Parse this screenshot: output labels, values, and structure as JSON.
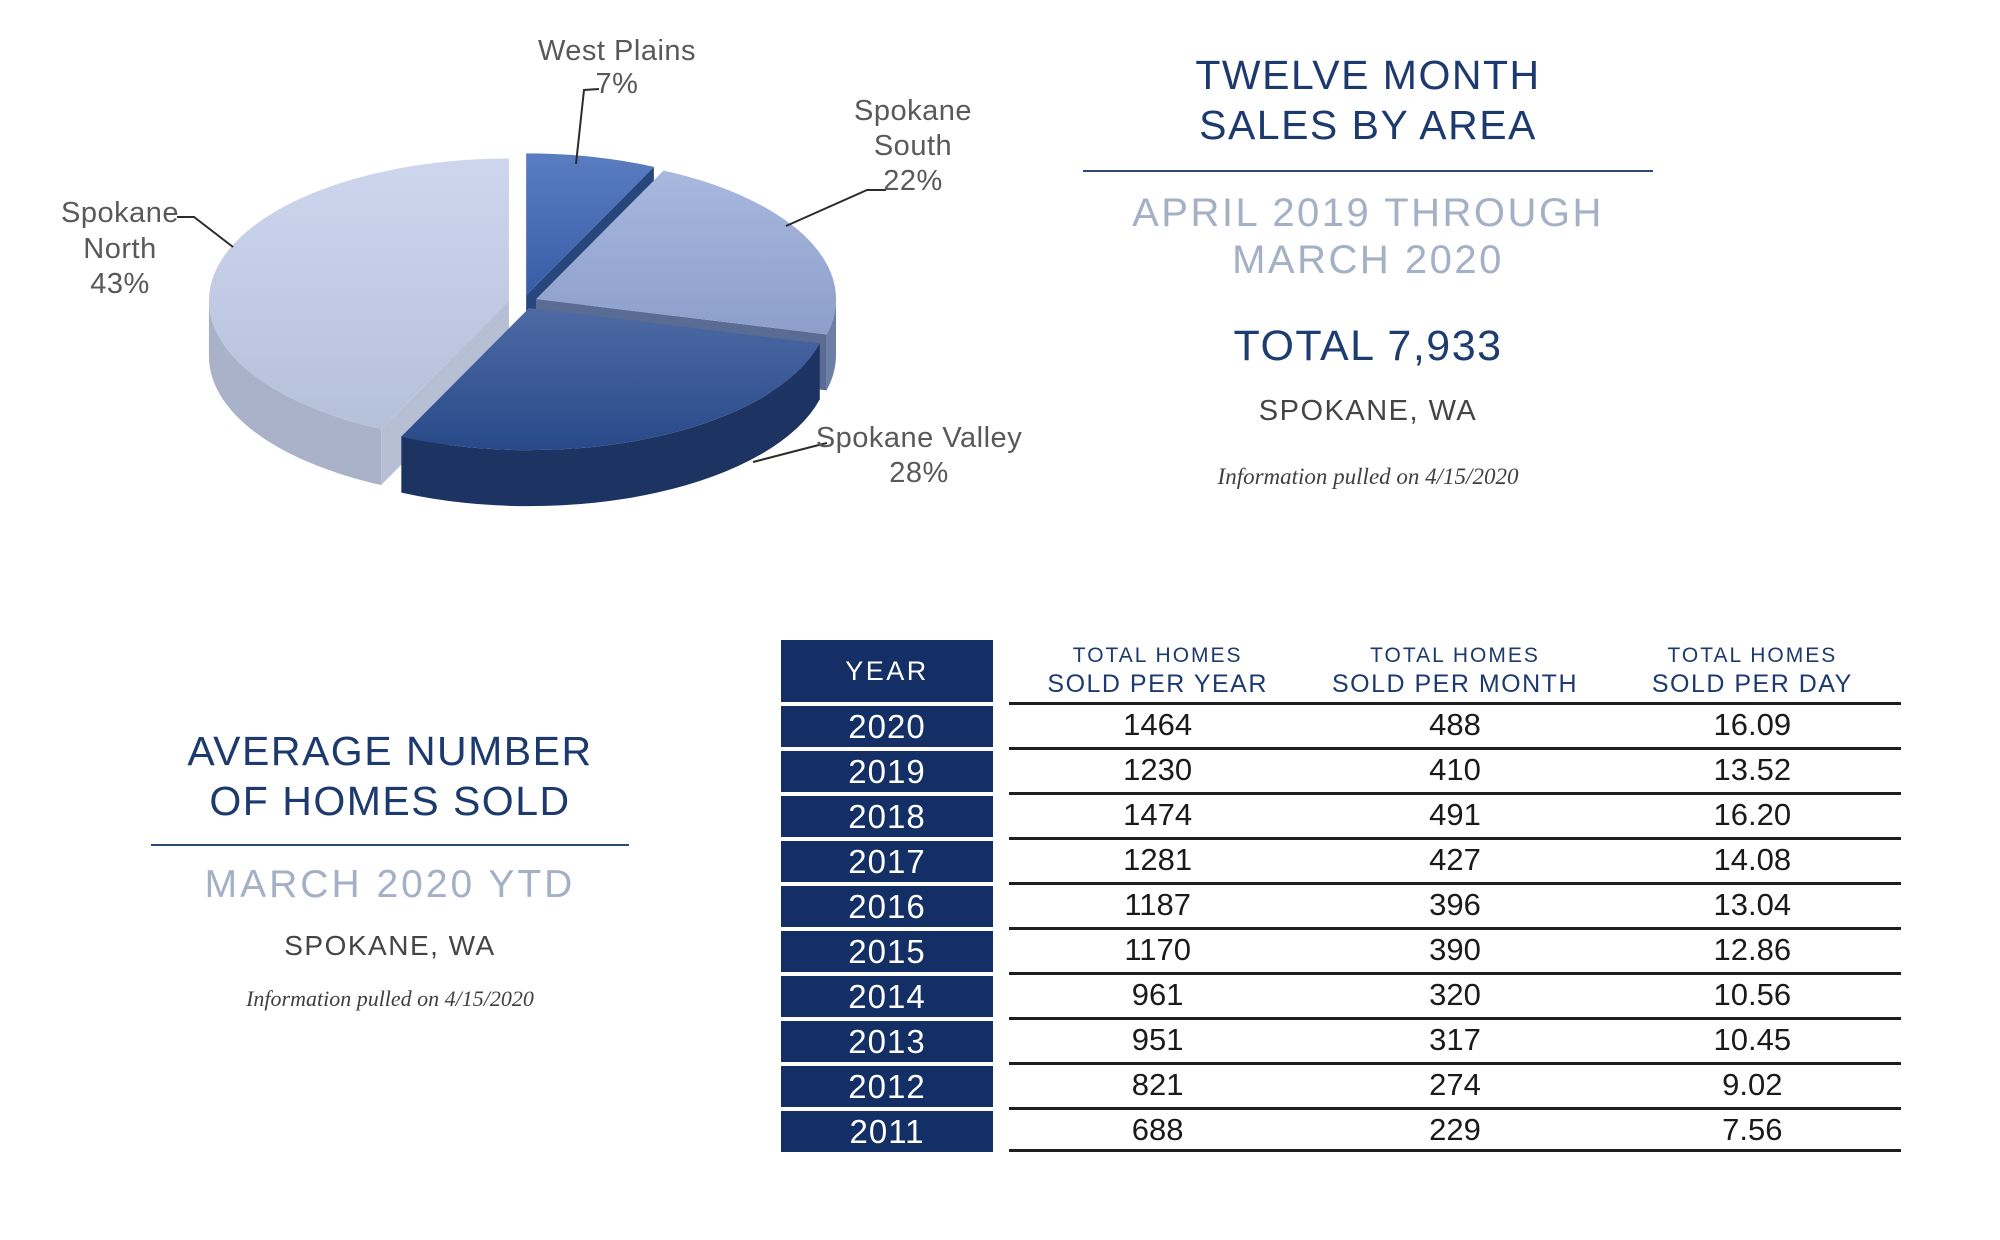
{
  "sales_panel": {
    "title": [
      "TWELVE MONTH",
      "SALES BY AREA"
    ],
    "subtitle": [
      "APRIL 2019 THROUGH",
      "MARCH 2020"
    ],
    "total": "TOTAL 7,933",
    "location": "SPOKANE, WA",
    "note": "Information pulled on 4/15/2020"
  },
  "avg_panel": {
    "title": [
      "AVERAGE NUMBER",
      "OF HOMES SOLD"
    ],
    "subtitle": "MARCH 2020 YTD",
    "location": "SPOKANE, WA",
    "note": "Information pulled on 4/15/2020"
  },
  "chart_data": [
    {
      "type": "pie",
      "style": "3d-exploded",
      "title": "Twelve Month Sales by Area",
      "period": "April 2019 through March 2020",
      "total_sales": 7933,
      "unit": "percent",
      "legend_position": "outside-data-labels",
      "slices": [
        {
          "label": "West Plains",
          "value": 7,
          "color": "#3b64b5",
          "side": "#2a4a82",
          "wall": "#27477c"
        },
        {
          "label": "Spokane South",
          "value": 22,
          "color": "#97abd9",
          "side": "#6d7fa6",
          "wall": "#5a6c94"
        },
        {
          "label": "Spokane Valley",
          "value": 28,
          "color": "#2b4e93",
          "side": "#1d3463",
          "wall": "#46536e"
        },
        {
          "label": "Spokane North",
          "value": 43,
          "color": "#c3cee9",
          "side": "#a9b2c9",
          "wall": "#b6bfd4"
        }
      ]
    },
    {
      "type": "table",
      "title": "Average Number of Homes Sold",
      "year_header": "YEAR",
      "columns": [
        [
          "TOTAL HOMES",
          "SOLD PER YEAR"
        ],
        [
          "TOTAL HOMES",
          "SOLD PER MONTH"
        ],
        [
          "TOTAL HOMES",
          "SOLD PER DAY"
        ]
      ],
      "rows": [
        [
          "2020",
          "1464",
          "488",
          "16.09"
        ],
        [
          "2019",
          "1230",
          "410",
          "13.52"
        ],
        [
          "2018",
          "1474",
          "491",
          "16.20"
        ],
        [
          "2017",
          "1281",
          "427",
          "14.08"
        ],
        [
          "2016",
          "1187",
          "396",
          "13.04"
        ],
        [
          "2015",
          "1170",
          "390",
          "12.86"
        ],
        [
          "2014",
          "961",
          "320",
          "10.56"
        ],
        [
          "2013",
          "951",
          "317",
          "10.45"
        ],
        [
          "2012",
          "821",
          "274",
          "9.02"
        ],
        [
          "2011",
          "688",
          "229",
          "7.56"
        ]
      ]
    }
  ],
  "colors": {
    "title_navy": "#1d3a6e",
    "table_navy": "#132f66",
    "muted_blue": "#a3b0c6",
    "rule_blue": "#2c4a7c",
    "value_text": "#1a1a1a",
    "pie_label_gray": "#58595b"
  }
}
